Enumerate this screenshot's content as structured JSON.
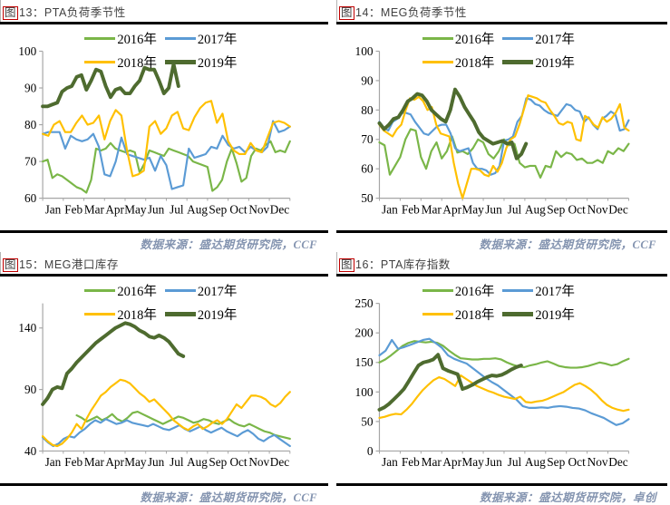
{
  "colors": {
    "accent_box": "#c00000",
    "axis": "#a6a6a6",
    "rule": "#000000",
    "watermark": "#8494b0",
    "series_2016": "#7ab648",
    "series_2017": "#5b9bd5",
    "series_2018": "#ffc000",
    "series_2019": "#4e6b2f"
  },
  "chart_data": [
    {
      "type": "line",
      "figure_char": "图",
      "title_rest": "13：PTA负荷季节性",
      "source_note": "数据来源：盛达期货研究院，CCF",
      "categories": [
        "Jan",
        "Feb",
        "Mar",
        "Apr",
        "May",
        "Jun",
        "Jul",
        "Aug",
        "Sep",
        "Oct",
        "Nov",
        "Dec"
      ],
      "ylim": [
        60,
        100
      ],
      "yticks": [
        60,
        70,
        80,
        90,
        100
      ],
      "legend_position": "top-center",
      "grid": false,
      "series": [
        {
          "name": "2016年",
          "color": "#7ab648",
          "width": 2.2,
          "start_week": 0,
          "end_week": 51,
          "values": [
            70,
            70.5,
            65.5,
            66.5,
            66,
            65,
            64,
            63,
            62.5,
            61.5,
            65,
            73.5,
            73,
            73.5,
            75,
            73.5,
            73,
            72.5,
            73,
            72.5,
            67,
            69.5,
            73,
            72.5,
            72,
            71.5,
            73.5,
            73,
            72.5,
            72,
            71.5,
            70,
            69.5,
            69,
            68.5,
            62,
            63,
            65,
            70,
            73.5,
            69.5,
            64.5,
            65.5,
            71.5,
            73.5,
            73,
            74.5,
            75.5,
            72.5,
            73,
            72.5,
            75.5
          ]
        },
        {
          "name": "2017年",
          "color": "#5b9bd5",
          "width": 2.2,
          "start_week": 0,
          "end_week": 51,
          "values": [
            77.5,
            78,
            78,
            78,
            73.5,
            77,
            76,
            75.5,
            76,
            77.5,
            74,
            66.5,
            66,
            70,
            76.5,
            72,
            71.5,
            71,
            70.5,
            71,
            67.5,
            71.5,
            69,
            62.5,
            63,
            63.5,
            73.5,
            71,
            71.5,
            72,
            74,
            73.5,
            77,
            74.5,
            73.5,
            74,
            72.5,
            74,
            73,
            72.5,
            74,
            81,
            78,
            78.5,
            79.5
          ]
        },
        {
          "name": "2018年",
          "color": "#ffc000",
          "width": 2.2,
          "start_week": 0,
          "end_week": 51,
          "values": [
            77.5,
            77,
            80,
            81,
            78,
            78,
            80.5,
            82.5,
            80,
            80.5,
            82.5,
            76,
            81,
            84,
            82.5,
            73,
            66,
            66.5,
            67.5,
            79.5,
            81,
            77.5,
            79,
            82.5,
            83.5,
            79,
            78.5,
            82,
            84.5,
            86,
            86.5,
            80.5,
            83,
            75.5,
            73,
            72,
            72,
            75,
            73,
            72.5,
            76.5,
            80.5,
            81,
            80.5,
            79.5
          ]
        },
        {
          "name": "2019年",
          "color": "#4e6b2f",
          "width": 4,
          "start_week": 0,
          "end_week": 28,
          "values": [
            85,
            85,
            85.5,
            86,
            89,
            90,
            90.5,
            93,
            93.5,
            89.5,
            92,
            95,
            94.5,
            90.5,
            87.5,
            89.5,
            90,
            88.5,
            88.5,
            90.5,
            92,
            95.5,
            95,
            95,
            92,
            88.5,
            90,
            96.5,
            90.5
          ]
        }
      ]
    },
    {
      "type": "line",
      "figure_char": "图",
      "title_rest": "14：MEG负荷季节性",
      "source_note": "数据来源：盛达期货研究院，CCF",
      "categories": [
        "Jan",
        "Feb",
        "Mar",
        "Apr",
        "May",
        "Jun",
        "Jul",
        "Aug",
        "Sep",
        "Oct",
        "Nov",
        "Dec"
      ],
      "ylim": [
        50,
        100
      ],
      "yticks": [
        50,
        60,
        70,
        80,
        90,
        100
      ],
      "legend_position": "top-center",
      "grid": false,
      "series": [
        {
          "name": "2016年",
          "color": "#7ab648",
          "width": 2.2,
          "start_week": 0,
          "end_week": 51,
          "values": [
            69,
            68,
            58,
            61,
            64,
            70,
            73.5,
            73,
            64,
            60,
            66,
            69,
            63.5,
            66,
            71,
            65.5,
            66,
            65,
            67,
            70,
            69,
            65,
            63.5,
            66,
            70,
            68,
            68.5,
            62,
            60.5,
            61,
            61,
            57,
            61,
            60.5,
            66,
            64,
            65.5,
            65,
            63,
            63.5,
            62,
            62,
            63,
            62,
            66,
            65,
            67,
            66,
            68.5
          ]
        },
        {
          "name": "2017年",
          "color": "#5b9bd5",
          "width": 2.2,
          "start_week": 0,
          "end_week": 51,
          "values": [
            76,
            74,
            73,
            76,
            77,
            79,
            79,
            78.5,
            76,
            74,
            72,
            71.5,
            73,
            74.5,
            75,
            75,
            72,
            67,
            66,
            66.5,
            67,
            62,
            60,
            60,
            59.5,
            58,
            58.5,
            61,
            69.5,
            70,
            71,
            76,
            78,
            84,
            83.5,
            82,
            81.5,
            80,
            79,
            78.5,
            78,
            80,
            82,
            81.5,
            80,
            79.5,
            76,
            77.5,
            75,
            73.5,
            77,
            78,
            79.5,
            78.5,
            73,
            73.5,
            76.5
          ]
        },
        {
          "name": "2018年",
          "color": "#ffc000",
          "width": 2.2,
          "start_week": 0,
          "end_week": 51,
          "values": [
            75,
            73,
            72,
            71,
            73.5,
            75,
            80,
            84,
            83.5,
            84.5,
            83,
            80,
            81,
            75,
            72,
            71.5,
            71,
            62,
            55,
            50,
            55,
            60,
            60,
            59.5,
            58,
            57.5,
            61,
            59,
            62,
            67,
            70,
            71,
            75,
            80,
            85,
            84.5,
            84,
            83,
            82.5,
            80,
            78,
            75.5,
            75,
            76,
            75.5,
            70,
            69.5,
            78,
            77,
            75,
            74,
            77.5,
            76,
            77,
            79,
            82,
            74,
            73
          ]
        },
        {
          "name": "2019年",
          "color": "#4e6b2f",
          "width": 4,
          "start_week": 0,
          "end_week": 30,
          "values": [
            75.5,
            73.5,
            75,
            77,
            77.5,
            80,
            83,
            84,
            85.5,
            85,
            83,
            80,
            78.5,
            77,
            76,
            80,
            87,
            84.5,
            81,
            78.5,
            76,
            72.5,
            70.5,
            69.5,
            68.5,
            69,
            69.5,
            68.5,
            69,
            63.5,
            65,
            68.5
          ]
        }
      ]
    },
    {
      "type": "line",
      "figure_char": "图",
      "title_rest": "15：MEG港口库存",
      "source_note": "数据来源：盛达期货研究院，CCF",
      "categories": [
        "Jan",
        "Feb",
        "Mar",
        "Apr",
        "May",
        "Jun",
        "Jul",
        "Aug",
        "Sep",
        "Oct",
        "Nov",
        "Dec"
      ],
      "ylim": [
        40,
        160
      ],
      "yticks": [
        40,
        90,
        140
      ],
      "legend_position": "top-center",
      "grid": false,
      "series": [
        {
          "name": "2016年",
          "color": "#7ab648",
          "width": 2.2,
          "start_week": 7,
          "end_week": 51,
          "values": [
            69,
            67,
            64,
            66,
            68,
            65,
            67,
            70,
            66,
            64,
            67,
            71,
            72,
            70,
            68,
            66,
            64,
            62,
            64,
            66,
            68,
            67,
            65,
            63,
            64,
            66,
            65,
            63,
            62,
            64,
            66,
            63,
            61,
            60,
            62,
            60,
            58,
            56,
            55,
            53,
            52,
            51,
            50
          ]
        },
        {
          "name": "2017年",
          "color": "#5b9bd5",
          "width": 2.2,
          "start_week": 0,
          "end_week": 51,
          "values": [
            51,
            47,
            44,
            46,
            50,
            52,
            51,
            55,
            58,
            62,
            65,
            63,
            66,
            64,
            62,
            63,
            65,
            63,
            62,
            61,
            60,
            62,
            60,
            58,
            57,
            59,
            61,
            58,
            56,
            58,
            60,
            57,
            55,
            57,
            59,
            56,
            54,
            52,
            55,
            57,
            54,
            50,
            48,
            51,
            53,
            50,
            47,
            44
          ]
        },
        {
          "name": "2018年",
          "color": "#ffc000",
          "width": 2.2,
          "start_week": 0,
          "end_week": 51,
          "values": [
            52,
            48,
            45,
            44,
            46,
            50,
            55,
            62,
            58,
            66,
            73,
            79,
            85,
            88,
            92,
            95,
            98,
            97,
            95,
            91,
            87,
            84,
            80,
            82,
            78,
            74,
            70,
            65,
            62,
            59,
            57,
            60,
            62,
            58,
            60,
            63,
            65,
            62,
            66,
            72,
            78,
            75,
            80,
            85,
            85,
            84,
            82,
            78,
            76,
            79,
            84,
            88
          ]
        },
        {
          "name": "2019年",
          "color": "#4e6b2f",
          "width": 4,
          "start_week": 0,
          "end_week": 29,
          "values": [
            78,
            83,
            90,
            92,
            91,
            103,
            107,
            112,
            116,
            120,
            124,
            128,
            131,
            134,
            137,
            140,
            142,
            144,
            143,
            141,
            138,
            136,
            133,
            132,
            134,
            132,
            129,
            124,
            119,
            117
          ]
        }
      ]
    },
    {
      "type": "line",
      "figure_char": "图",
      "title_rest": "16：PTA库存指数",
      "source_note": "数据来源：盛达期货研究院，卓创",
      "categories": [
        "Jan",
        "Feb",
        "Mar",
        "Apr",
        "May",
        "Jun",
        "Jul",
        "Aug",
        "Sep",
        "Oct",
        "Nov",
        "Dec"
      ],
      "ylim": [
        0,
        250
      ],
      "yticks": [
        0,
        50,
        100,
        150,
        200,
        250
      ],
      "legend_position": "top-center",
      "grid": false,
      "series": [
        {
          "name": "2016年",
          "color": "#7ab648",
          "width": 2.2,
          "start_week": 0,
          "end_week": 51,
          "values": [
            150,
            155,
            162,
            170,
            178,
            183,
            186,
            185,
            184,
            185,
            183,
            178,
            170,
            163,
            157,
            156,
            155,
            155,
            156,
            156,
            157,
            155,
            150,
            146,
            143,
            142,
            145,
            147,
            150,
            152,
            148,
            144,
            142,
            141,
            141,
            142,
            144,
            147,
            150,
            148,
            145,
            147,
            152,
            156
          ]
        },
        {
          "name": "2017年",
          "color": "#5b9bd5",
          "width": 2.2,
          "start_week": 0,
          "end_week": 51,
          "values": [
            162,
            170,
            188,
            173,
            176,
            180,
            184,
            188,
            190,
            183,
            175,
            162,
            156,
            152,
            148,
            140,
            132,
            124,
            117,
            111,
            103,
            95,
            87,
            76,
            73,
            73,
            74,
            73,
            75,
            76,
            75,
            73,
            72,
            69,
            64,
            60,
            56,
            50,
            44,
            47,
            54
          ]
        },
        {
          "name": "2018年",
          "color": "#ffc000",
          "width": 2.2,
          "start_week": 0,
          "end_week": 51,
          "values": [
            56,
            58,
            61,
            63,
            62,
            70,
            80,
            92,
            103,
            112,
            120,
            125,
            122,
            116,
            110,
            128,
            122,
            116,
            110,
            106,
            102,
            99,
            95,
            92,
            90,
            88,
            92,
            83,
            82,
            84,
            85,
            88,
            92,
            96,
            100,
            106,
            112,
            115,
            110,
            104,
            96,
            86,
            78,
            73,
            70,
            68,
            70
          ]
        },
        {
          "name": "2019年",
          "color": "#4e6b2f",
          "width": 4,
          "start_week": 0,
          "end_week": 29,
          "values": [
            70,
            74,
            80,
            88,
            96,
            105,
            118,
            132,
            145,
            150,
            152,
            155,
            163,
            140,
            136,
            133,
            130,
            105,
            108,
            112,
            117,
            121,
            125,
            128,
            127,
            129,
            133,
            138,
            142,
            145
          ]
        }
      ]
    }
  ]
}
